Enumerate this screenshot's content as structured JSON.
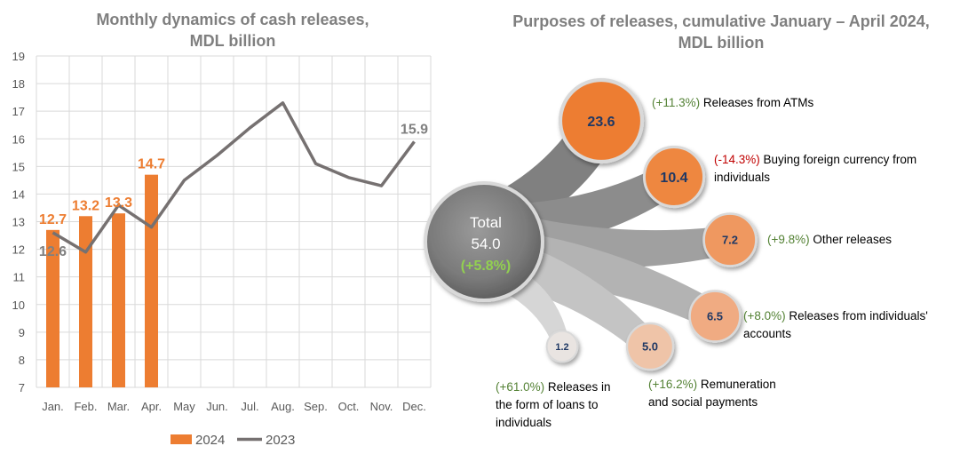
{
  "chart_data": [
    {
      "type": "bar",
      "title": [
        "Monthly dynamics of cash releases,",
        "MDL billion"
      ],
      "categories": [
        "Jan.",
        "Feb.",
        "Mar.",
        "Apr.",
        "May",
        "Jun.",
        "Jul.",
        "Aug.",
        "Sep.",
        "Oct.",
        "Nov.",
        "Dec."
      ],
      "ylim": [
        7,
        19
      ],
      "yticks": [
        7,
        8,
        9,
        10,
        11,
        12,
        13,
        14,
        15,
        16,
        17,
        18,
        19
      ],
      "grid": true,
      "legend_position": "bottom",
      "series": [
        {
          "name": "2024",
          "kind": "bar",
          "color": "#ed7d31",
          "values": [
            12.7,
            13.2,
            13.3,
            14.7,
            null,
            null,
            null,
            null,
            null,
            null,
            null,
            null
          ],
          "labels": [
            "12.7",
            "13.2",
            "13.3",
            "14.7"
          ]
        },
        {
          "name": "2023",
          "kind": "line",
          "color": "#767171",
          "values": [
            12.6,
            11.9,
            13.6,
            12.8,
            14.5,
            15.4,
            16.4,
            17.3,
            15.1,
            14.6,
            14.3,
            15.9
          ],
          "labels": [
            {
              "index": 0,
              "text": "12.6"
            },
            {
              "index": 11,
              "text": "15.9"
            }
          ]
        }
      ]
    },
    {
      "type": "bubble",
      "title": [
        "Purposes of releases, cumulative January – April 2024,",
        "MDL billion"
      ],
      "total": {
        "label": "Total",
        "value": "54.0",
        "change": "(+5.8%)"
      },
      "items": [
        {
          "value": 23.6,
          "label_text": "23.6",
          "change": "(+11.3%)",
          "trend": "up",
          "label": [
            "Releases from ATMs"
          ],
          "color": "#ed7d31"
        },
        {
          "value": 10.4,
          "label_text": "10.4",
          "change": "(-14.3%)",
          "trend": "down",
          "label": [
            "Buying foreign currency from",
            "individuals"
          ],
          "color": "#ee8740"
        },
        {
          "value": 7.2,
          "label_text": "7.2",
          "change": "(+9.8%)",
          "trend": "up",
          "label": [
            "Other releases"
          ],
          "color": "#ef9860"
        },
        {
          "value": 6.5,
          "label_text": "6.5",
          "change": "(+8.0%)",
          "trend": "up",
          "label": [
            "Releases from individuals'",
            "accounts"
          ],
          "color": "#f0ab82"
        },
        {
          "value": 5.0,
          "label_text": "5.0",
          "change": "(+16.2%)",
          "trend": "up",
          "label": [
            "Remuneration",
            "and social payments"
          ],
          "color": "#efc4a8"
        },
        {
          "value": 1.2,
          "label_text": "1.2",
          "change": "(+61.0%)",
          "trend": "up",
          "label": [
            "Releases in",
            "the form of loans to",
            "individuals"
          ],
          "color": "#e9e4e1"
        }
      ]
    }
  ]
}
